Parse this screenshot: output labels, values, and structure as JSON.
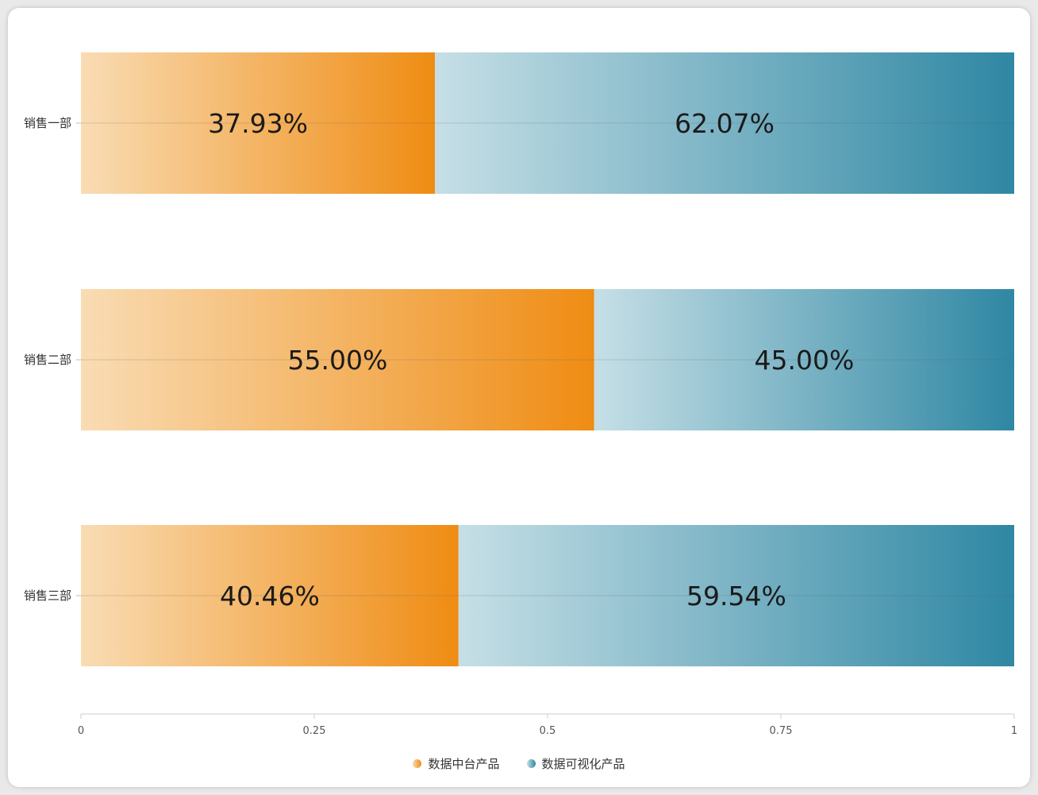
{
  "chart_data": {
    "type": "bar",
    "orientation": "horizontal",
    "stacked": true,
    "normalized": true,
    "categories": [
      "销售一部",
      "销售二部",
      "销售三部"
    ],
    "series": [
      {
        "name": "数据中台产品",
        "values": [
          0.3793,
          0.55,
          0.4046
        ],
        "labels": [
          "37.93%",
          "55.00%",
          "40.46%"
        ],
        "color_start": "#f9dcb4",
        "color_end": "#ef8c13"
      },
      {
        "name": "数据可视化产品",
        "values": [
          0.6207,
          0.45,
          0.5954
        ],
        "labels": [
          "62.07%",
          "45.00%",
          "59.54%"
        ],
        "color_start": "#c6dfe6",
        "color_end": "#2f87a3"
      }
    ],
    "xlim": [
      0,
      1
    ],
    "xticks": [
      "0",
      "0.25",
      "0.5",
      "0.75",
      "1"
    ],
    "legend_position": "bottom-center",
    "grid": false
  }
}
